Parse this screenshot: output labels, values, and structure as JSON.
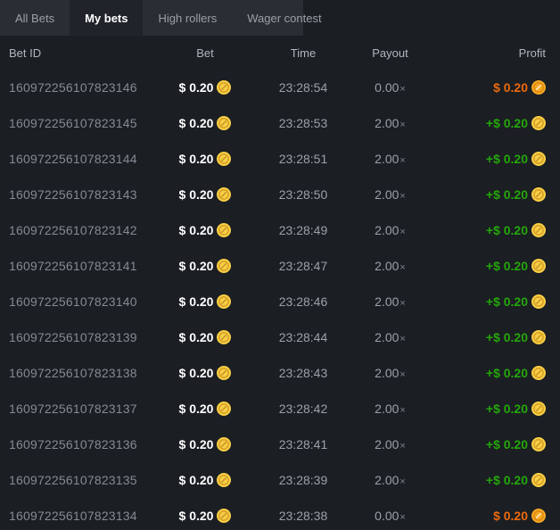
{
  "tabs": {
    "items": [
      {
        "label": "All Bets",
        "active": false
      },
      {
        "label": "My bets",
        "active": true
      },
      {
        "label": "High rollers",
        "active": false
      },
      {
        "label": "Wager contest",
        "active": false
      }
    ]
  },
  "table": {
    "headers": {
      "bet_id": "Bet ID",
      "bet": "Bet",
      "time": "Time",
      "payout": "Payout",
      "profit": "Profit"
    },
    "multiplier_symbol": "×",
    "rows": [
      {
        "id": "160972256107823146",
        "bet": "$ 0.20",
        "time": "23:28:54",
        "payout": "0.00",
        "profit": "$ 0.20",
        "result": "loss"
      },
      {
        "id": "160972256107823145",
        "bet": "$ 0.20",
        "time": "23:28:53",
        "payout": "2.00",
        "profit": "+$ 0.20",
        "result": "win"
      },
      {
        "id": "160972256107823144",
        "bet": "$ 0.20",
        "time": "23:28:51",
        "payout": "2.00",
        "profit": "+$ 0.20",
        "result": "win"
      },
      {
        "id": "160972256107823143",
        "bet": "$ 0.20",
        "time": "23:28:50",
        "payout": "2.00",
        "profit": "+$ 0.20",
        "result": "win"
      },
      {
        "id": "160972256107823142",
        "bet": "$ 0.20",
        "time": "23:28:49",
        "payout": "2.00",
        "profit": "+$ 0.20",
        "result": "win"
      },
      {
        "id": "160972256107823141",
        "bet": "$ 0.20",
        "time": "23:28:47",
        "payout": "2.00",
        "profit": "+$ 0.20",
        "result": "win"
      },
      {
        "id": "160972256107823140",
        "bet": "$ 0.20",
        "time": "23:28:46",
        "payout": "2.00",
        "profit": "+$ 0.20",
        "result": "win"
      },
      {
        "id": "160972256107823139",
        "bet": "$ 0.20",
        "time": "23:28:44",
        "payout": "2.00",
        "profit": "+$ 0.20",
        "result": "win"
      },
      {
        "id": "160972256107823138",
        "bet": "$ 0.20",
        "time": "23:28:43",
        "payout": "2.00",
        "profit": "+$ 0.20",
        "result": "win"
      },
      {
        "id": "160972256107823137",
        "bet": "$ 0.20",
        "time": "23:28:42",
        "payout": "2.00",
        "profit": "+$ 0.20",
        "result": "win"
      },
      {
        "id": "160972256107823136",
        "bet": "$ 0.20",
        "time": "23:28:41",
        "payout": "2.00",
        "profit": "+$ 0.20",
        "result": "win"
      },
      {
        "id": "160972256107823135",
        "bet": "$ 0.20",
        "time": "23:28:39",
        "payout": "2.00",
        "profit": "+$ 0.20",
        "result": "win"
      },
      {
        "id": "160972256107823134",
        "bet": "$ 0.20",
        "time": "23:28:38",
        "payout": "0.00",
        "profit": "$ 0.20",
        "result": "loss"
      }
    ]
  },
  "colors": {
    "background": "#1b1e23",
    "tabbar_background": "#2a2d33",
    "active_tab_background": "#202329",
    "win_text": "#24a70a",
    "loss_text": "#ed6a0c",
    "coin_gold": "#f9cf45"
  }
}
